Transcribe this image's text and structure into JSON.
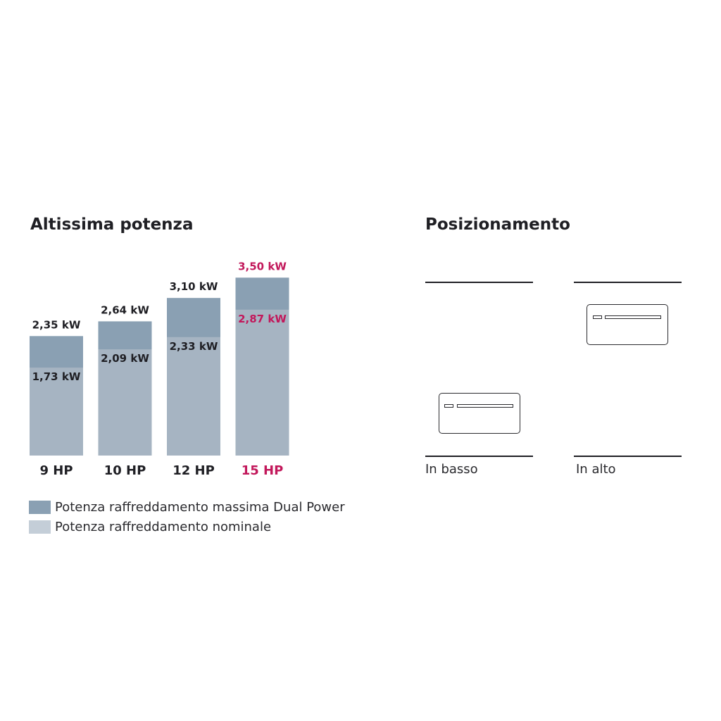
{
  "left_title": "Altissima potenza",
  "right_title": "Posizionamento",
  "colors": {
    "max_bar": "#8aa0b3",
    "nominal_bar": "#a6b4c2",
    "accent": "#c2185b",
    "text": "#1f1f24"
  },
  "chart_data": {
    "type": "bar",
    "stacked": false,
    "categories": [
      "9 HP",
      "10 HP",
      "12 HP",
      "15 HP"
    ],
    "series": [
      {
        "name": "Potenza raffreddamento massima Dual Power",
        "values": [
          2.35,
          2.64,
          3.1,
          3.5
        ],
        "labels": [
          "2,35 kW",
          "2,64 kW",
          "3,10 kW",
          "3,50 kW"
        ]
      },
      {
        "name": "Potenza raffreddamento nominale",
        "values": [
          1.73,
          2.09,
          2.33,
          2.87
        ],
        "labels": [
          "1,73 kW",
          "2,09 kW",
          "2,33 kW",
          "2,87 kW"
        ]
      }
    ],
    "highlight_category": "15 HP",
    "ylim": [
      0,
      3.5
    ],
    "grid": false,
    "axes_visible": false
  },
  "legend": [
    {
      "label": "Potenza raffreddamento massima Dual Power",
      "color": "#8aa0b3"
    },
    {
      "label": "Potenza raffreddamento nominale",
      "color": "#c4ced8"
    }
  ],
  "positions": [
    {
      "label": "In basso",
      "unit_position": "bottom"
    },
    {
      "label": "In alto",
      "unit_position": "top"
    }
  ]
}
